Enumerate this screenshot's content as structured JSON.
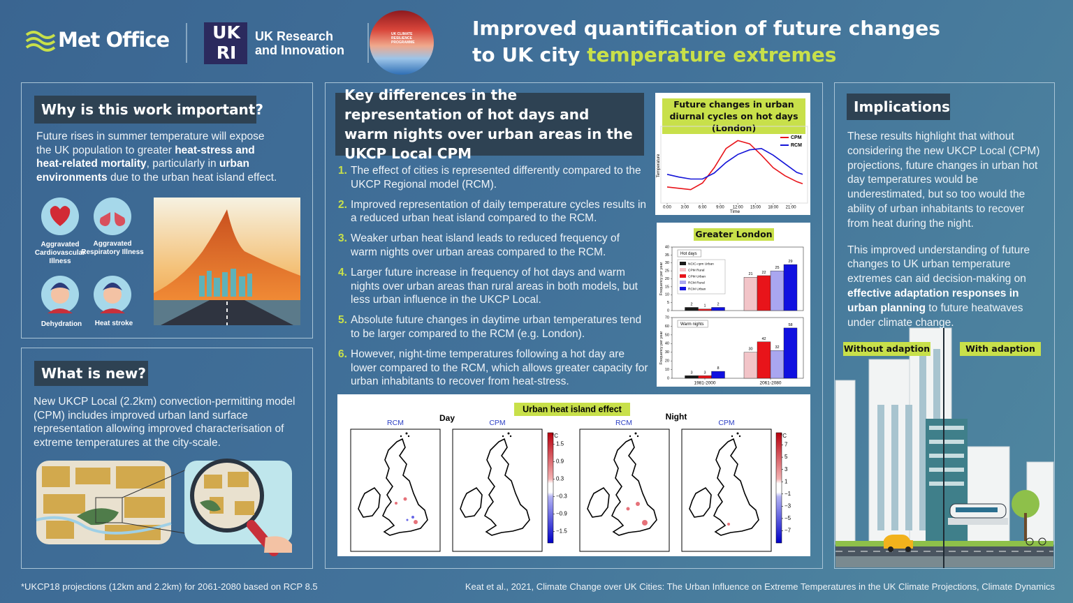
{
  "header": {
    "met_office": "Met Office",
    "ukri_logo": [
      "UK",
      "RI"
    ],
    "ukri": "UK Research and Innovation",
    "ucrp": "UK CLIMATE RESILIENCE PROGRAMME",
    "title": {
      "line1": "Improved quantification of future changes",
      "line2": "to UK city",
      "highlight": "temperature extremes"
    }
  },
  "why": {
    "heading": "Why is this work important?",
    "body": [
      {
        "text": "Future rises in summer temperature will expose the UK population to greater "
      },
      {
        "text": "heat-stress and heat-related mortality",
        "bold": true
      },
      {
        "text": ", particularly in "
      },
      {
        "text": "urban environments",
        "bold": true
      },
      {
        "text": " due to the urban heat island effect."
      }
    ],
    "impacts": [
      "Aggravated Cardiovascular Illness",
      "Aggravated Respiratory Illness",
      "Dehydration",
      "Heat stroke"
    ]
  },
  "new": {
    "heading": "What is new?",
    "body": "New UKCP Local (2.2km) convection-permitting model (CPM) includes improved urban land surface representation allowing improved characterisation of extreme temperatures at the city-scale."
  },
  "key": {
    "heading": "Key differences in the representation of hot days and warm nights over urban areas in the UKCP Local CPM",
    "items": [
      {
        "num": "1.",
        "text": "The effect of cities is represented differently compared to the UKCP Regional model (RCM)."
      },
      {
        "num": "2.",
        "text": "Improved representation of daily temperature cycles results in a reduced urban heat island compared to the RCM."
      },
      {
        "num": "3.",
        "text": "Weaker urban heat island leads to reduced frequency of warm nights over urban areas compared to the RCM."
      },
      {
        "num": "4.",
        "text": "Larger future increase in frequency of hot days and warm nights over urban areas than rural areas in both models, but less urban influence in the UKCP Local."
      },
      {
        "num": "5.",
        "text": "Absolute future changes in daytime urban temperatures tend to be larger compared to the RCM (e.g. London)."
      },
      {
        "num": "6.",
        "text": "However, night-time temperatures following a hot day are lower compared to the RCM, which allows greater capacity for urban inhabitants to recover from heat-stress."
      }
    ]
  },
  "chart_data": [
    {
      "type": "line",
      "title": "Future changes in urban diurnal cycles on hot days (London)",
      "xlabel": "Time",
      "ylabel": "Temperature",
      "x": [
        0,
        2,
        4,
        6,
        8,
        10,
        12,
        14,
        16,
        18,
        20,
        22,
        23
      ],
      "xlim": [
        0,
        23
      ],
      "xticks": [
        {
          "value": 0,
          "label": "0:00"
        },
        {
          "value": 3,
          "label": "3:00"
        },
        {
          "value": 6,
          "label": "6:00"
        },
        {
          "value": 9,
          "label": "9:00"
        },
        {
          "value": 12,
          "label": "12:00"
        },
        {
          "value": 15,
          "label": "15:00"
        },
        {
          "value": 18,
          "label": "18:00"
        },
        {
          "value": 21,
          "label": "21:00"
        }
      ],
      "ylim": [
        0,
        10
      ],
      "legend": "upper right",
      "series": [
        {
          "name": "CPM",
          "color": "#e8141a",
          "values": [
            1.8,
            1.6,
            1.4,
            2.4,
            4.7,
            7.6,
            8.8,
            8.3,
            6.6,
            4.7,
            3.5,
            2.6,
            2.3
          ]
        },
        {
          "name": "RCM",
          "color": "#1414d8",
          "values": [
            3.7,
            3.3,
            3.0,
            3.0,
            3.9,
            5.5,
            6.7,
            7.4,
            7.6,
            6.6,
            5.3,
            4.0,
            3.7
          ]
        }
      ]
    },
    {
      "type": "bar",
      "title": "Greater London",
      "subtitle": "Hot days",
      "ylabel": "Frequency per year",
      "categories": [
        null,
        null
      ],
      "ylim": [
        0,
        40
      ],
      "yticks": [
        0,
        5,
        10,
        15,
        20,
        25,
        30,
        35,
        40
      ],
      "series": [
        {
          "name": "NCIC-cpm Urban",
          "color": "#1a1a1a",
          "values": [
            2,
            null
          ]
        },
        {
          "name": "CPM Rural",
          "color": "#f2c4c8",
          "values": [
            null,
            21
          ]
        },
        {
          "name": "CPM Urban",
          "color": "#e8141a",
          "values": [
            1,
            22
          ]
        },
        {
          "name": "RCM Rural",
          "color": "#a9a6f0",
          "values": [
            null,
            25
          ]
        },
        {
          "name": "RCM Urban",
          "color": "#1010e0",
          "values": [
            2,
            29
          ]
        }
      ]
    },
    {
      "type": "bar",
      "subtitle": "Warm nights",
      "ylabel": "Frequency per year",
      "categories": [
        "1981-2000",
        "2061-2080"
      ],
      "ylim": [
        0,
        70
      ],
      "yticks": [
        0,
        10,
        20,
        30,
        40,
        50,
        60,
        70
      ],
      "series": [
        {
          "color": "#1a1a1a",
          "values": [
            3,
            null
          ]
        },
        {
          "color": "#f2c4c8",
          "values": [
            null,
            30
          ]
        },
        {
          "color": "#e8141a",
          "values": [
            3,
            42
          ]
        },
        {
          "color": "#a9a6f0",
          "values": [
            null,
            32
          ]
        },
        {
          "color": "#1010e0",
          "values": [
            8,
            58
          ]
        }
      ]
    }
  ],
  "uhi": {
    "title": "Urban heat island effect",
    "panels": [
      {
        "label": "Day",
        "maps": [
          "RCM",
          "CPM"
        ],
        "unit": "°C",
        "lim": [
          -1.9,
          1.9
        ],
        "ticks": [
          1.5,
          0.9,
          0.3,
          {
            "value": -0.3,
            "label": "−0.3"
          },
          {
            "value": -0.9,
            "label": "−0.9"
          },
          {
            "value": -1.5,
            "label": "−1.5"
          }
        ]
      },
      {
        "label": "Night",
        "maps": [
          "RCM",
          "CPM"
        ],
        "unit": "°C",
        "lim": [
          -9,
          9
        ],
        "ticks": [
          7,
          5,
          3,
          1,
          {
            "value": -1,
            "label": "−1"
          },
          {
            "value": -3,
            "label": "−3"
          },
          {
            "value": -5,
            "label": "−5"
          },
          {
            "value": -7,
            "label": "−7"
          }
        ]
      }
    ]
  },
  "implications": {
    "heading": "Implications",
    "body": [
      [
        {
          "text": "These results highlight that without considering the new UKCP Local (CPM) projections, future changes in urban hot day temperatures would be underestimated, but so too would the ability of urban inhabitants to recover from heat during the night."
        }
      ],
      [
        {
          "text": "This improved understanding of future changes to UK urban temperature extremes can aid decision-making on "
        },
        {
          "text": "effective adaptation responses in urban planning",
          "bold": true
        },
        {
          "text": " to future heatwaves under climate change."
        }
      ]
    ],
    "without": "Without adaption",
    "with": "With adaption"
  },
  "footer": {
    "note": "*UKCP18 projections (12km and 2.2km) for 2061-2080 based on RCP 8.5",
    "citation": "Keat et al., 2021, Climate Change over UK Cities: The Urban Influence on Extreme Temperatures in the UK Climate Projections, Climate Dynamics"
  }
}
